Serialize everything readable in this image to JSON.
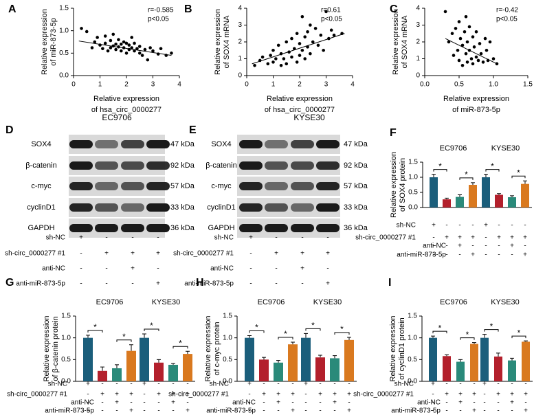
{
  "chart_data": [
    {
      "type": "scatter",
      "panel": "A",
      "x_label": [
        "Relative expression",
        "of hsa_circ_0000277"
      ],
      "y_label": [
        "Relative expression",
        "of  miR-873-5p"
      ],
      "annotations": [
        "r=-0.585",
        "p<0.05"
      ],
      "color": "#000000",
      "x": [
        0.3,
        0.5,
        0.7,
        0.8,
        0.9,
        1.0,
        1.1,
        1.2,
        1.2,
        1.3,
        1.4,
        1.4,
        1.5,
        1.5,
        1.6,
        1.6,
        1.7,
        1.7,
        1.8,
        1.8,
        1.9,
        1.9,
        2.0,
        2.0,
        2.1,
        2.1,
        2.2,
        2.2,
        2.3,
        2.3,
        2.4,
        2.5,
        2.5,
        2.6,
        2.7,
        2.8,
        2.9,
        3.0,
        3.2,
        3.3,
        3.5,
        3.7
      ],
      "values": [
        1.05,
        0.98,
        0.62,
        0.75,
        0.85,
        0.68,
        0.6,
        0.72,
        0.88,
        0.55,
        0.78,
        0.62,
        0.92,
        0.66,
        0.58,
        0.7,
        0.8,
        0.64,
        0.7,
        0.55,
        0.62,
        0.75,
        0.72,
        0.5,
        0.68,
        0.58,
        0.85,
        0.62,
        0.55,
        0.72,
        0.6,
        0.5,
        0.65,
        0.45,
        0.58,
        0.35,
        0.62,
        0.55,
        0.48,
        0.6,
        0.45,
        0.5
      ],
      "fit_line": {
        "x": [
          0.2,
          3.7
        ],
        "values": [
          0.77,
          0.45
        ]
      },
      "xlim": [
        0,
        4
      ],
      "xticks": [
        0,
        1,
        2,
        3,
        4
      ],
      "ylim": [
        0,
        1.5
      ],
      "yticks": [
        {
          "value": 0,
          "label": "0.0"
        },
        {
          "value": 0.5,
          "label": "0.5"
        },
        {
          "value": 1,
          "label": "1.0"
        },
        {
          "value": 1.5,
          "label": "1.5"
        }
      ]
    },
    {
      "type": "scatter",
      "panel": "B",
      "x_label": [
        "Relative expression",
        "of hsa_circ_0000277"
      ],
      "y_label": [
        "Relative expression",
        "of SOX4 mRNA"
      ],
      "annotations": [
        "r=0.61",
        "p<0.05"
      ],
      "color": "#000000",
      "x": [
        0.3,
        0.5,
        0.6,
        0.8,
        0.9,
        1.0,
        1.0,
        1.1,
        1.2,
        1.3,
        1.3,
        1.4,
        1.5,
        1.5,
        1.6,
        1.7,
        1.7,
        1.8,
        1.9,
        1.9,
        2.0,
        2.0,
        2.1,
        2.1,
        2.2,
        2.2,
        2.3,
        2.3,
        2.4,
        2.4,
        2.5,
        2.6,
        2.7,
        2.8,
        2.9,
        3.0,
        3.1,
        3.2,
        3.3,
        3.6
      ],
      "values": [
        0.6,
        0.9,
        1.1,
        0.7,
        1.2,
        0.8,
        1.5,
        1.0,
        1.8,
        0.6,
        1.3,
        1.0,
        2.0,
        0.7,
        1.4,
        1.1,
        2.2,
        1.6,
        0.8,
        2.5,
        1.2,
        1.9,
        3.5,
        1.5,
        2.3,
        1.0,
        2.6,
        1.7,
        3.0,
        1.3,
        2.0,
        2.8,
        1.8,
        2.4,
        1.5,
        3.8,
        2.2,
        2.7,
        2.4,
        2.5
      ],
      "fit_line": {
        "x": [
          0.2,
          3.7
        ],
        "values": [
          0.7,
          2.5
        ]
      },
      "xlim": [
        0,
        4
      ],
      "xticks": [
        0,
        1,
        2,
        3,
        4
      ],
      "ylim": [
        0,
        4
      ],
      "yticks": [
        0,
        1,
        2,
        3,
        4
      ]
    },
    {
      "type": "scatter",
      "panel": "C",
      "x_label": [
        "Relative expression",
        "of  miR-873-5p"
      ],
      "y_label": [
        "Relative expression",
        "of SOX4 mRNA"
      ],
      "annotations": [
        "r=-0.42",
        "p<0.05"
      ],
      "color": "#000000",
      "x": [
        0.3,
        0.35,
        0.4,
        0.42,
        0.45,
        0.48,
        0.5,
        0.5,
        0.52,
        0.55,
        0.55,
        0.58,
        0.6,
        0.6,
        0.62,
        0.62,
        0.65,
        0.65,
        0.68,
        0.7,
        0.7,
        0.72,
        0.75,
        0.75,
        0.78,
        0.8,
        0.82,
        0.85,
        0.88,
        0.9,
        0.92,
        0.95,
        1.0,
        1.05
      ],
      "values": [
        3.8,
        2.0,
        2.5,
        1.2,
        2.8,
        1.5,
        3.2,
        0.9,
        2.2,
        1.8,
        0.6,
        2.6,
        1.3,
        3.5,
        0.8,
        2.0,
        1.5,
        2.9,
        1.0,
        2.3,
        0.7,
        1.7,
        1.1,
        2.6,
        0.9,
        1.9,
        1.3,
        0.8,
        2.2,
        1.5,
        0.9,
        2.0,
        1.0,
        0.7
      ],
      "fit_line": {
        "x": [
          0.3,
          1.05
        ],
        "values": [
          2.2,
          0.7
        ]
      },
      "xlim": [
        0,
        1.5
      ],
      "xticks": [
        {
          "value": 0,
          "label": "0.0"
        },
        {
          "value": 0.5,
          "label": "0.5"
        },
        {
          "value": 1,
          "label": "1.0"
        },
        {
          "value": 1.5,
          "label": "1.5"
        }
      ],
      "ylim": [
        0,
        4
      ],
      "yticks": [
        0,
        1,
        2,
        3,
        4
      ]
    },
    {
      "type": "bar",
      "panel": "F",
      "categories": [
        "EC9706",
        "KYSE30"
      ],
      "y_label": [
        "Relative expression",
        "of SOX4 protein"
      ],
      "sig_label": "*",
      "ylim": [
        0,
        1.5
      ],
      "yticks": [
        {
          "value": 0,
          "label": "0.0"
        },
        {
          "value": 0.5,
          "label": "0.5"
        },
        {
          "value": 1,
          "label": "1.0"
        },
        {
          "value": 1.5,
          "label": "1.5"
        }
      ],
      "series": [
        {
          "color": "#1b5e7b",
          "values": [
            1.0,
            1.0
          ],
          "errors": [
            0.1,
            0.1
          ]
        },
        {
          "color": "#b3202c",
          "values": [
            0.27,
            0.42
          ],
          "errors": [
            0.04,
            0.04
          ]
        },
        {
          "color": "#2a8a7a",
          "values": [
            0.35,
            0.34
          ],
          "errors": [
            0.07,
            0.05
          ]
        },
        {
          "color": "#d9791f",
          "values": [
            0.75,
            0.78
          ],
          "errors": [
            0.07,
            0.1
          ]
        }
      ],
      "conditions": [
        {
          "label": "sh-NC",
          "signs": [
            "+",
            "-",
            "-",
            "-",
            "+",
            "-",
            "-",
            "-"
          ]
        },
        {
          "label": "sh-circ_0000277 #1",
          "signs": [
            "-",
            "+",
            "+",
            "+",
            "-",
            "+",
            "+",
            "+"
          ]
        },
        {
          "label": "anti-NC",
          "signs": [
            "-",
            "-",
            "+",
            "-",
            "-",
            "-",
            "+",
            "-"
          ]
        },
        {
          "label": "anti-miR-873-5p",
          "signs": [
            "-",
            "-",
            "-",
            "+",
            "-",
            "-",
            "-",
            "+"
          ]
        }
      ]
    },
    {
      "type": "bar",
      "panel": "G",
      "categories": [
        "EC9706",
        "KYSE30"
      ],
      "y_label": [
        "Relative expression",
        "of β-catenin protein"
      ],
      "sig_label": "*",
      "ylim": [
        0,
        1.5
      ],
      "yticks": [
        {
          "value": 0,
          "label": "0.0"
        },
        {
          "value": 0.5,
          "label": "0.5"
        },
        {
          "value": 1,
          "label": "1.0"
        },
        {
          "value": 1.5,
          "label": "1.5"
        }
      ],
      "series": [
        {
          "color": "#1b5e7b",
          "values": [
            1.0,
            1.0
          ],
          "errors": [
            0.06,
            0.09
          ]
        },
        {
          "color": "#b3202c",
          "values": [
            0.24,
            0.43
          ],
          "errors": [
            0.09,
            0.07
          ]
        },
        {
          "color": "#2a8a7a",
          "values": [
            0.3,
            0.38
          ],
          "errors": [
            0.08,
            0.03
          ]
        },
        {
          "color": "#d9791f",
          "values": [
            0.7,
            0.63
          ],
          "errors": [
            0.14,
            0.06
          ]
        }
      ],
      "conditions": [
        {
          "label": "sh-NC",
          "signs": [
            "+",
            "-",
            "-",
            "-",
            "+",
            "-",
            "-",
            "-"
          ]
        },
        {
          "label": "sh-circ_0000277 #1",
          "signs": [
            "-",
            "+",
            "+",
            "+",
            "-",
            "+",
            "+",
            "+"
          ]
        },
        {
          "label": "anti-NC",
          "signs": [
            "-",
            "-",
            "+",
            "-",
            "-",
            "-",
            "+",
            "-"
          ]
        },
        {
          "label": "anti-miR-873-5p",
          "signs": [
            "-",
            "-",
            "-",
            "+",
            "-",
            "-",
            "-",
            "+"
          ]
        }
      ]
    },
    {
      "type": "bar",
      "panel": "H",
      "categories": [
        "EC9706",
        "KYSE30"
      ],
      "y_label": [
        "Relative expression",
        "of c-myc protein"
      ],
      "sig_label": "*",
      "ylim": [
        0,
        1.5
      ],
      "yticks": [
        {
          "value": 0,
          "label": "0.0"
        },
        {
          "value": 0.5,
          "label": "0.5"
        },
        {
          "value": 1,
          "label": "1.0"
        },
        {
          "value": 1.5,
          "label": "1.5"
        }
      ],
      "series": [
        {
          "color": "#1b5e7b",
          "values": [
            1.0,
            1.0
          ],
          "errors": [
            0.05,
            0.1
          ]
        },
        {
          "color": "#b3202c",
          "values": [
            0.5,
            0.55
          ],
          "errors": [
            0.05,
            0.05
          ]
        },
        {
          "color": "#2a8a7a",
          "values": [
            0.43,
            0.53
          ],
          "errors": [
            0.05,
            0.06
          ]
        },
        {
          "color": "#d9791f",
          "values": [
            0.85,
            0.95
          ],
          "errors": [
            0.05,
            0.06
          ]
        }
      ],
      "conditions": [
        {
          "label": "sh-NC",
          "signs": [
            "+",
            "-",
            "-",
            "-",
            "+",
            "-",
            "-",
            "-"
          ]
        },
        {
          "label": "sh-circ_0000277 #1",
          "signs": [
            "-",
            "+",
            "+",
            "+",
            "-",
            "+",
            "+",
            "+"
          ]
        },
        {
          "label": "anti-NC",
          "signs": [
            "-",
            "-",
            "+",
            "-",
            "-",
            "-",
            "+",
            "-"
          ]
        },
        {
          "label": "anti-miR-873-5p",
          "signs": [
            "-",
            "-",
            "-",
            "+",
            "-",
            "-",
            "-",
            "+"
          ]
        }
      ]
    },
    {
      "type": "bar",
      "panel": "I",
      "categories": [
        "EC9706",
        "KYSE30"
      ],
      "y_label": [
        "Relative expression",
        "of cyclinD1 protein"
      ],
      "sig_label": "*",
      "ylim": [
        0,
        1.5
      ],
      "yticks": [
        {
          "value": 0,
          "label": "0.0"
        },
        {
          "value": 0.5,
          "label": "0.5"
        },
        {
          "value": 1,
          "label": "1.0"
        },
        {
          "value": 1.5,
          "label": "1.5"
        }
      ],
      "series": [
        {
          "color": "#1b5e7b",
          "values": [
            1.0,
            1.0
          ],
          "errors": [
            0.04,
            0.08
          ]
        },
        {
          "color": "#b3202c",
          "values": [
            0.58,
            0.57
          ],
          "errors": [
            0.03,
            0.08
          ]
        },
        {
          "color": "#2a8a7a",
          "values": [
            0.45,
            0.48
          ],
          "errors": [
            0.05,
            0.05
          ]
        },
        {
          "color": "#d9791f",
          "values": [
            0.86,
            0.91
          ],
          "errors": [
            0.03,
            0.02
          ]
        }
      ],
      "conditions": [
        {
          "label": "sh-NC",
          "signs": [
            "+",
            "-",
            "-",
            "-",
            "+",
            "-",
            "-",
            "-"
          ]
        },
        {
          "label": "sh-circ_0000277 #1",
          "signs": [
            "-",
            "+",
            "+",
            "+",
            "-",
            "+",
            "+",
            "+"
          ]
        },
        {
          "label": "anti-NC",
          "signs": [
            "-",
            "-",
            "+",
            "-",
            "-",
            "-",
            "+",
            "-"
          ]
        },
        {
          "label": "anti-miR-873-5p",
          "signs": [
            "-",
            "-",
            "-",
            "+",
            "-",
            "-",
            "-",
            "+"
          ]
        }
      ]
    }
  ],
  "blots": [
    {
      "panel": "D",
      "title": "EC9706",
      "proteins": [
        "SOX4",
        "β-catenin",
        "c-myc",
        "cyclinD1",
        "GAPDH"
      ],
      "sizes": [
        "47 kDa",
        "92 kDa",
        "57 kDa",
        "33 kDa",
        "36 kDa"
      ],
      "conditions": [
        {
          "label": "sh-NC",
          "signs": [
            "+",
            "-",
            "-",
            "-"
          ]
        },
        {
          "label": "sh-circ_0000277 #1",
          "signs": [
            "-",
            "+",
            "+",
            "+"
          ]
        },
        {
          "label": "anti-NC",
          "signs": [
            "-",
            "-",
            "+",
            "-"
          ]
        },
        {
          "label": "anti-miR-873-5p",
          "signs": [
            "-",
            "-",
            "-",
            "+"
          ]
        }
      ]
    },
    {
      "panel": "E",
      "title": "KYSE30",
      "proteins": [
        "SOX4",
        "β-catenin",
        "c-myc",
        "cyclinD1",
        "GAPDH"
      ],
      "sizes": [
        "47 kDa",
        "92 kDa",
        "57 kDa",
        "33 kDa",
        "36 kDa"
      ],
      "conditions": [
        {
          "label": "sh-NC",
          "signs": [
            "+",
            "-",
            "-",
            "-"
          ]
        },
        {
          "label": "sh-circ_0000277 #1",
          "signs": [
            "-",
            "+",
            "+",
            "+"
          ]
        },
        {
          "label": "anti-NC",
          "signs": [
            "-",
            "-",
            "+",
            "-"
          ]
        },
        {
          "label": "anti-miR-873-5p",
          "signs": [
            "-",
            "-",
            "-",
            "+"
          ]
        }
      ]
    }
  ]
}
